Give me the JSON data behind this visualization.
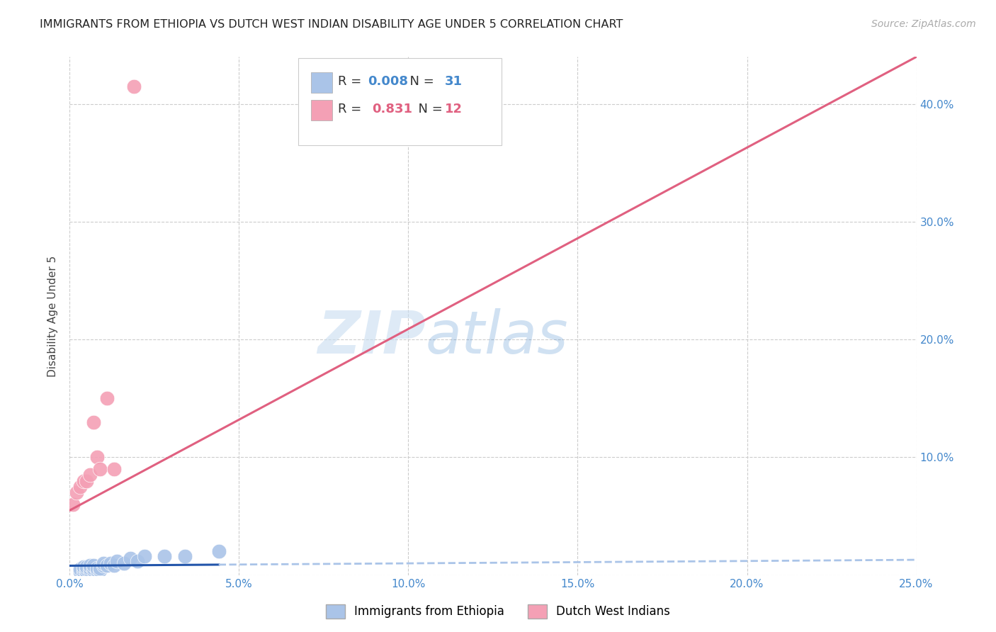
{
  "title": "IMMIGRANTS FROM ETHIOPIA VS DUTCH WEST INDIAN DISABILITY AGE UNDER 5 CORRELATION CHART",
  "source": "Source: ZipAtlas.com",
  "ylabel_label": "Disability Age Under 5",
  "xlim": [
    0.0,
    0.25
  ],
  "ylim": [
    0.0,
    0.44
  ],
  "xticks": [
    0.0,
    0.05,
    0.1,
    0.15,
    0.2,
    0.25
  ],
  "yticks": [
    0.0,
    0.1,
    0.2,
    0.3,
    0.4
  ],
  "xticklabels": [
    "0.0%",
    "5.0%",
    "10.0%",
    "15.0%",
    "20.0%",
    "25.0%"
  ],
  "yticklabels_right": [
    "",
    "10.0%",
    "20.0%",
    "30.0%",
    "40.0%"
  ],
  "background_color": "#ffffff",
  "grid_color": "#cccccc",
  "title_color": "#222222",
  "blue_color": "#aac4e8",
  "pink_color": "#f4a0b5",
  "blue_line_color": "#2255aa",
  "pink_line_color": "#e06080",
  "blue_dash_color": "#aac4e8",
  "tick_label_color": "#4488cc",
  "legend_R_blue": "0.008",
  "legend_N_blue": "31",
  "legend_R_pink": "0.831",
  "legend_N_pink": "12",
  "watermark_zip": "ZIP",
  "watermark_atlas": "atlas",
  "blue_x": [
    0.003,
    0.003,
    0.004,
    0.004,
    0.004,
    0.005,
    0.005,
    0.005,
    0.006,
    0.006,
    0.006,
    0.007,
    0.007,
    0.007,
    0.008,
    0.008,
    0.009,
    0.009,
    0.01,
    0.01,
    0.011,
    0.012,
    0.013,
    0.014,
    0.016,
    0.018,
    0.02,
    0.022,
    0.028,
    0.034,
    0.044
  ],
  "blue_y": [
    0.003,
    0.005,
    0.003,
    0.005,
    0.007,
    0.003,
    0.005,
    0.007,
    0.004,
    0.006,
    0.008,
    0.004,
    0.006,
    0.008,
    0.004,
    0.006,
    0.004,
    0.006,
    0.008,
    0.01,
    0.008,
    0.01,
    0.008,
    0.012,
    0.01,
    0.014,
    0.012,
    0.016,
    0.016,
    0.016,
    0.02
  ],
  "pink_x": [
    0.001,
    0.002,
    0.003,
    0.004,
    0.005,
    0.006,
    0.007,
    0.008,
    0.009,
    0.011,
    0.013,
    0.019
  ],
  "pink_y": [
    0.06,
    0.07,
    0.075,
    0.08,
    0.08,
    0.085,
    0.13,
    0.1,
    0.09,
    0.15,
    0.09,
    0.415
  ],
  "blue_trendline_x": [
    0.0,
    0.044,
    0.25
  ],
  "blue_trendline_y": [
    0.008,
    0.012,
    0.013
  ],
  "pink_trendline_x": [
    0.0,
    0.25
  ],
  "pink_trendline_y": [
    0.055,
    0.44
  ]
}
